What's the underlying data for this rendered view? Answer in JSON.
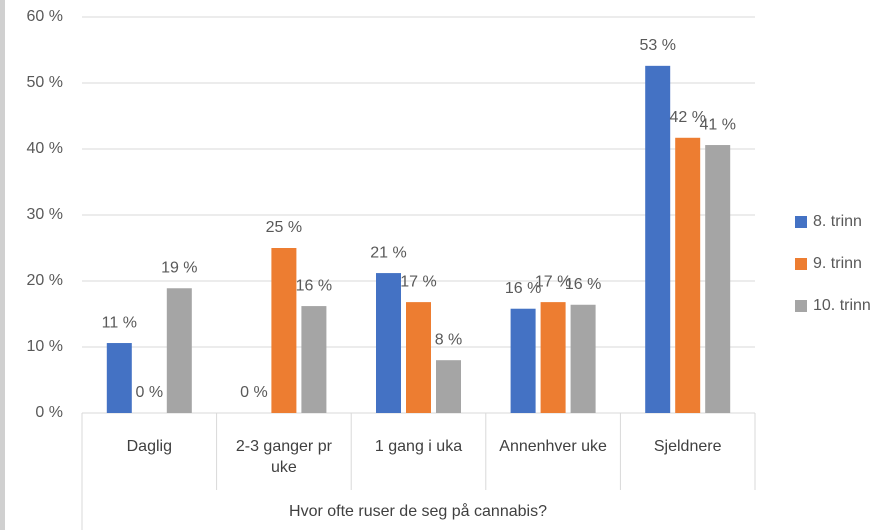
{
  "chart_data": {
    "type": "bar",
    "x_label": "Hvor ofte ruser de seg på  cannabis?",
    "categories": [
      "Daglig",
      "2-3 ganger pr uke",
      "1 gang i uka",
      "Annenhver uke",
      "Sjeldnere"
    ],
    "series": [
      {
        "name": "8. trinn",
        "color": "#4472c4",
        "values": [
          10.6,
          0,
          21.2,
          15.8,
          52.6
        ],
        "value_labels": [
          "11 %",
          "0 %",
          "21 %",
          "16 %",
          "53 %"
        ]
      },
      {
        "name": "9. trinn",
        "color": "#ed7d31",
        "values": [
          0,
          25,
          16.8,
          16.8,
          41.7
        ],
        "value_labels": [
          "0 %",
          "25 %",
          "17 %",
          "17 %",
          "42 %"
        ]
      },
      {
        "name": "10. trinn",
        "color": "#a5a5a5",
        "values": [
          18.9,
          16.2,
          8.0,
          16.4,
          40.6
        ],
        "value_labels": [
          "19 %",
          "16 %",
          "8 %",
          "16 %",
          "41 %"
        ]
      }
    ],
    "ylim": [
      0,
      60
    ],
    "yticks": [
      {
        "value": 0,
        "label": "0 %"
      },
      {
        "value": 10,
        "label": "10 %"
      },
      {
        "value": 20,
        "label": "20 %"
      },
      {
        "value": 30,
        "label": "30 %"
      },
      {
        "value": 40,
        "label": "40 %"
      },
      {
        "value": 50,
        "label": "50 %"
      },
      {
        "value": 60,
        "label": "60 %"
      }
    ],
    "grid": true,
    "legend": "right"
  }
}
